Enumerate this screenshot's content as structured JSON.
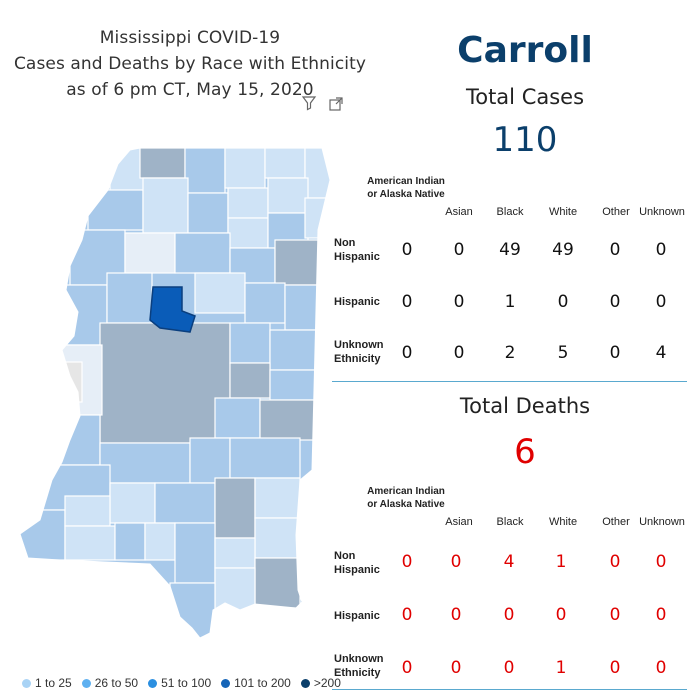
{
  "title": {
    "line1": "Mississippi COVID-19",
    "line2": "Cases and Deaths by Race with Ethnicity",
    "line3": "as of 6 pm CT, May 15, 2020"
  },
  "icons": {
    "filter": "filter-icon",
    "focus": "focus-mode-icon"
  },
  "county": "Carroll",
  "cases": {
    "label": "Total Cases",
    "total": "110",
    "columns": [
      "American Indian or Alaska Native",
      "Asian",
      "Black",
      "White",
      "Other",
      "Unknown"
    ],
    "rows": [
      {
        "label": "Non Hispanic",
        "values": [
          "0",
          "0",
          "49",
          "49",
          "0",
          "0"
        ]
      },
      {
        "label": "Hispanic",
        "values": [
          "0",
          "0",
          "1",
          "0",
          "0",
          "0"
        ]
      },
      {
        "label": "Unknown Ethnicity",
        "values": [
          "0",
          "0",
          "2",
          "5",
          "0",
          "4"
        ]
      }
    ]
  },
  "deaths": {
    "label": "Total Deaths",
    "total": "6",
    "columns": [
      "American Indian or Alaska Native",
      "Asian",
      "Black",
      "White",
      "Other",
      "Unknown"
    ],
    "rows": [
      {
        "label": "Non Hispanic",
        "values": [
          "0",
          "0",
          "4",
          "1",
          "0",
          "0"
        ]
      },
      {
        "label": "Hispanic",
        "values": [
          "0",
          "0",
          "0",
          "0",
          "0",
          "0"
        ]
      },
      {
        "label": "Unknown Ethnicity",
        "values": [
          "0",
          "0",
          "0",
          "1",
          "0",
          "0"
        ]
      }
    ]
  },
  "legend": [
    {
      "label": "1 to 25",
      "color": "#a9d3f5"
    },
    {
      "label": "26 to 50",
      "color": "#5eb0f0"
    },
    {
      "label": "51 to 100",
      "color": "#2b8fe0"
    },
    {
      "label": "101 to 200",
      "color": "#1565b8"
    },
    {
      "label": ">200",
      "color": "#0b3f6b"
    }
  ],
  "colors": {
    "selected_county": "#0a5cb8",
    "county_dim_light": "#cfe3f6",
    "county_dim_mid": "#a8c9ea",
    "county_dim_gray": "#9fb3c7",
    "county_nodata": "#e6e6e6",
    "cases_number": "#0b3f6b",
    "deaths_number": "#e00000"
  }
}
